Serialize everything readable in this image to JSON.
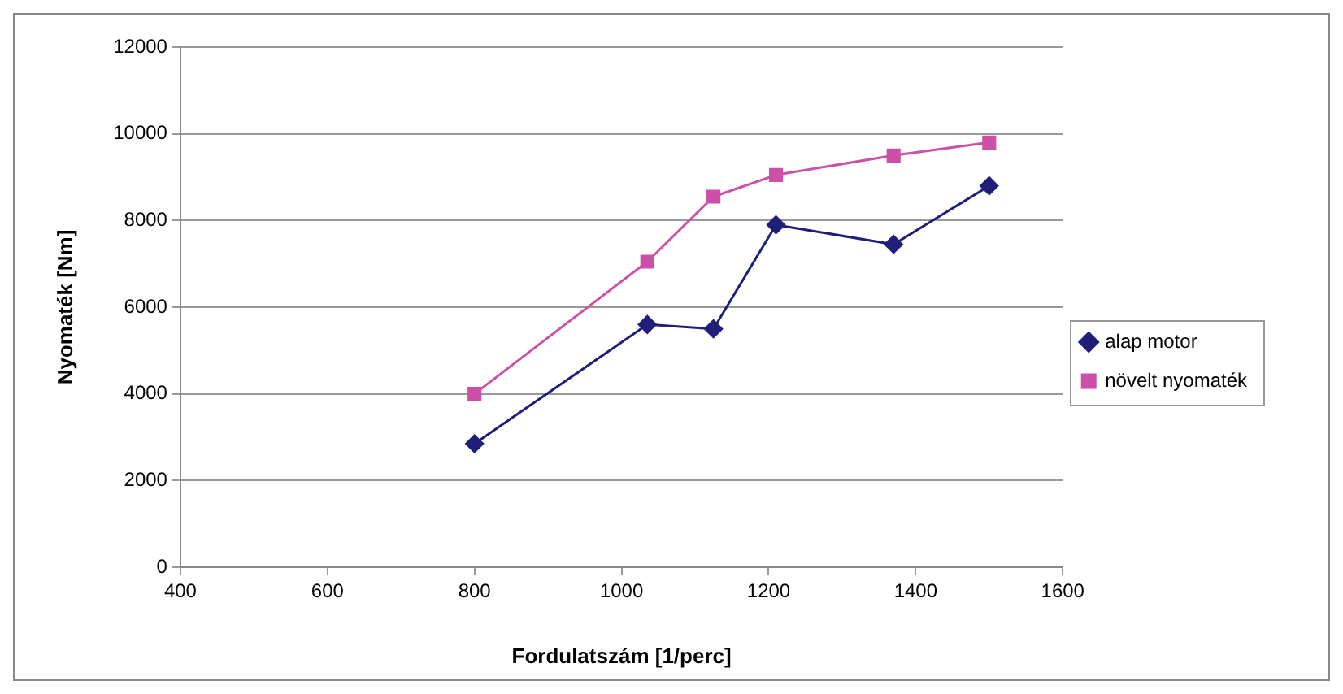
{
  "chart_data": {
    "type": "line",
    "xlabel": "Fordulatszám [1/perc]",
    "ylabel": "Nyomaték [Nm]",
    "xlim": [
      400,
      1600
    ],
    "xticks": [
      400,
      600,
      800,
      1000,
      1200,
      1400,
      1600
    ],
    "ylim": [
      0,
      12000
    ],
    "yticks": [
      0,
      2000,
      4000,
      6000,
      8000,
      10000,
      12000
    ],
    "grid": "y",
    "legend": "right",
    "series": [
      {
        "name": "alap motor",
        "color": "#1f1f7a",
        "marker": "diamond",
        "x": [
          800,
          1035,
          1125,
          1210,
          1370,
          1500
        ],
        "values": [
          2850,
          5600,
          5500,
          7900,
          7450,
          8800
        ]
      },
      {
        "name": "növelt nyomaték",
        "color": "#cc4fa8",
        "marker": "square",
        "x": [
          800,
          1035,
          1125,
          1210,
          1370,
          1500
        ],
        "values": [
          4000,
          7050,
          8550,
          9050,
          9500,
          9800
        ]
      }
    ]
  }
}
